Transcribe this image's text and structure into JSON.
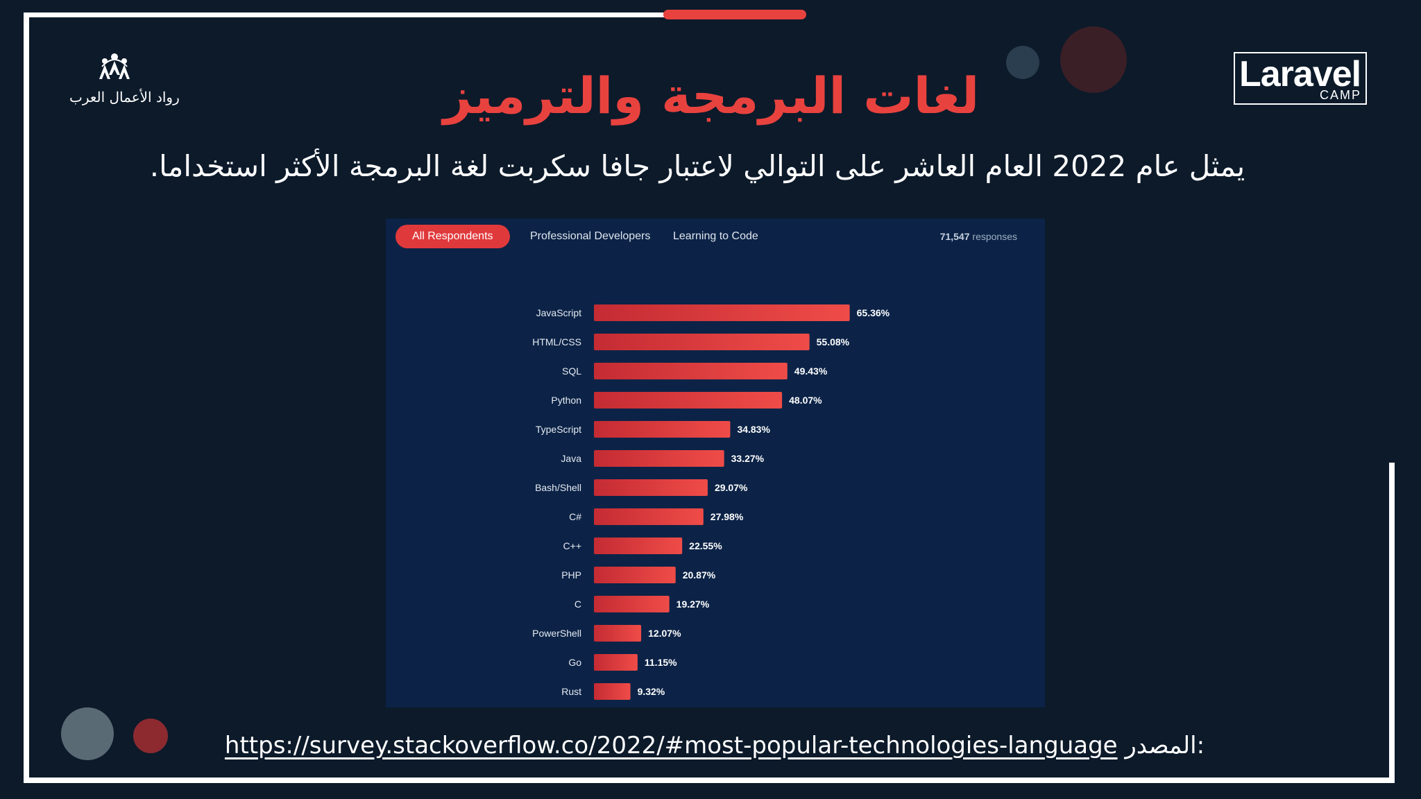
{
  "title": "لغات البرمجة والترميز",
  "subtitle": "يمثل عام 2022 العام العاشر على التوالي لاعتبار جافا سكربت لغة البرمجة الأكثر استخداما.",
  "logos": {
    "left_text": "رواد الأعمال العرب",
    "right_main": "Laravel",
    "right_sub": "CAMP"
  },
  "tabs": [
    {
      "label": "All Respondents",
      "active": true
    },
    {
      "label": "Professional Developers",
      "active": false
    },
    {
      "label": "Learning to Code",
      "active": false
    }
  ],
  "responses": {
    "count": "71,547",
    "label": "responses"
  },
  "source": {
    "label": "المصدر:",
    "url": "https://survey.stackoverflow.co/2022/#most-popular-technologies-language"
  },
  "colors": {
    "accent": "#e8423f",
    "background": "#0c1a2a",
    "panel": "#0c2347",
    "bar_start": "#c42b33",
    "bar_end": "#ef4c48"
  },
  "chart_data": {
    "type": "bar",
    "orientation": "horizontal",
    "categories": [
      "JavaScript",
      "HTML/CSS",
      "SQL",
      "Python",
      "TypeScript",
      "Java",
      "Bash/Shell",
      "C#",
      "C++",
      "PHP",
      "C",
      "PowerShell",
      "Go",
      "Rust"
    ],
    "values": [
      65.36,
      55.08,
      49.43,
      48.07,
      34.83,
      33.27,
      29.07,
      27.98,
      22.55,
      20.87,
      19.27,
      12.07,
      11.15,
      9.32
    ],
    "value_labels": [
      "65.36%",
      "55.08%",
      "49.43%",
      "48.07%",
      "34.83%",
      "33.27%",
      "29.07%",
      "27.98%",
      "22.55%",
      "20.87%",
      "19.27%",
      "12.07%",
      "11.15%",
      "9.32%"
    ],
    "unit": "%",
    "xlim": [
      0,
      100
    ],
    "grid": false,
    "legend": "none"
  }
}
